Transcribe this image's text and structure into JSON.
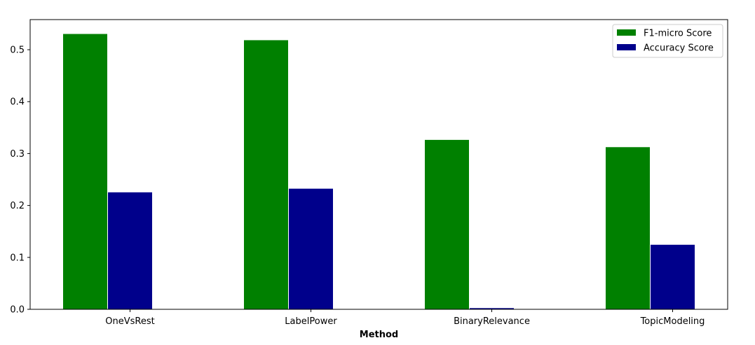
{
  "chart_data": {
    "type": "bar",
    "title": "",
    "xlabel": "Method",
    "ylabel": "",
    "categories": [
      "OneVsRest",
      "LabelPower",
      "BinaryRelevance",
      "TopicModeling"
    ],
    "series": [
      {
        "name": "F1-micro Score",
        "values": [
          0.531,
          0.519,
          0.327,
          0.313
        ],
        "color": "#008000"
      },
      {
        "name": "Accuracy Score",
        "values": [
          0.226,
          0.233,
          0.003,
          0.125
        ],
        "color": "#00008b"
      }
    ],
    "ylim": [
      0,
      0.558
    ],
    "yticks": [
      0.0,
      0.1,
      0.2,
      0.3,
      0.4,
      0.5
    ],
    "grid": false,
    "legend_position": "top-right"
  }
}
